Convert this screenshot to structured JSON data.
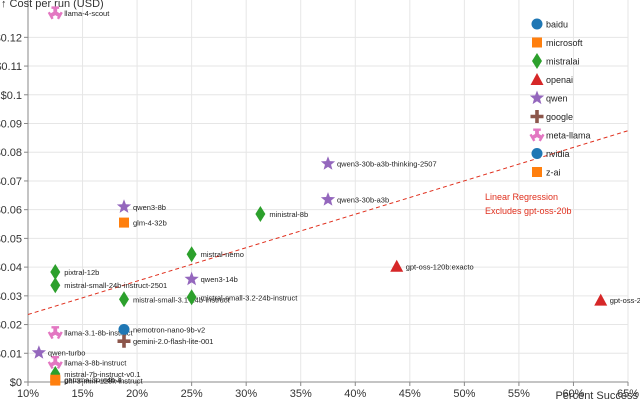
{
  "chart_data": {
    "type": "scatter",
    "title": "",
    "xlabel": "Percent Success",
    "ylabel": "↑ Cost per run (USD)",
    "xlim": [
      10,
      65
    ],
    "ylim": [
      0,
      0.133
    ],
    "x_ticks": [
      10,
      15,
      20,
      25,
      30,
      35,
      40,
      45,
      50,
      55,
      60,
      65
    ],
    "x_tick_labels": [
      "10%",
      "15%",
      "20%",
      "25%",
      "30%",
      "35%",
      "40%",
      "45%",
      "50%",
      "55%",
      "60%",
      "65%"
    ],
    "y_ticks": [
      0,
      0.01,
      0.02,
      0.03,
      0.04,
      0.05,
      0.06,
      0.07,
      0.08,
      0.09,
      0.1,
      0.11,
      0.12
    ],
    "y_tick_labels": [
      "$0",
      "$0.01",
      "$0.02",
      "$0.03",
      "$0.04",
      "$0.05",
      "$0.06",
      "$0.07",
      "$0.08",
      "$0.09",
      "$0.1",
      "$0.11",
      "$0.12"
    ],
    "series": [
      {
        "name": "baidu",
        "color": "#1f77b4",
        "shape": "circle"
      },
      {
        "name": "microsoft",
        "color": "#ff7f0e",
        "shape": "square"
      },
      {
        "name": "mistralai",
        "color": "#2ca02c",
        "shape": "diamond"
      },
      {
        "name": "openai",
        "color": "#d62728",
        "shape": "triangle"
      },
      {
        "name": "qwen",
        "color": "#9467bd",
        "shape": "star"
      },
      {
        "name": "google",
        "color": "#8c564b",
        "shape": "cross"
      },
      {
        "name": "meta-llama",
        "color": "#e377c2",
        "shape": "wye"
      },
      {
        "name": "nvidia",
        "color": "#1f77b4",
        "shape": "circle"
      },
      {
        "name": "z-ai",
        "color": "#ff7f0e",
        "shape": "square"
      }
    ],
    "points": [
      {
        "label": "llama-4-scout",
        "series": "meta-llama",
        "x": 12.5,
        "y": 0.1285
      },
      {
        "label": "qwen3-30b-a3b-thinking-2507",
        "series": "qwen",
        "x": 37.5,
        "y": 0.076
      },
      {
        "label": "qwen3-8b",
        "series": "qwen",
        "x": 18.8,
        "y": 0.061
      },
      {
        "label": "ministral-8b",
        "series": "mistralai",
        "x": 31.3,
        "y": 0.0585
      },
      {
        "label": "qwen3-30b-a3b",
        "series": "qwen",
        "x": 37.5,
        "y": 0.0635
      },
      {
        "label": "glm-4-32b",
        "series": "z-ai",
        "x": 18.8,
        "y": 0.0555
      },
      {
        "label": "mistral-nemo",
        "series": "mistralai",
        "x": 25.0,
        "y": 0.0445
      },
      {
        "label": "pixtral-12b",
        "series": "mistralai",
        "x": 12.5,
        "y": 0.0383
      },
      {
        "label": "gpt-oss-120b:exacto",
        "series": "openai",
        "x": 43.8,
        "y": 0.0403
      },
      {
        "label": "mistral-small-24b-instruct-2501",
        "series": "mistralai",
        "x": 12.5,
        "y": 0.0337
      },
      {
        "label": "qwen3-14b",
        "series": "qwen",
        "x": 25.0,
        "y": 0.0358
      },
      {
        "label": "mistral-small-3.1-24b-instruct",
        "series": "mistralai",
        "x": 18.8,
        "y": 0.0288
      },
      {
        "label": "mistral-small-3.2-24b-instruct",
        "series": "mistralai",
        "x": 25.0,
        "y": 0.0295
      },
      {
        "label": "gpt-oss-20b",
        "series": "openai",
        "x": 62.5,
        "y": 0.0285
      },
      {
        "label": "llama-3.1-8b-instruct",
        "series": "meta-llama",
        "x": 12.5,
        "y": 0.0172
      },
      {
        "label": "nemotron-nano-9b-v2",
        "series": "nvidia",
        "x": 18.8,
        "y": 0.0183
      },
      {
        "label": "gemini-2.0-flash-lite-001",
        "series": "google",
        "x": 18.8,
        "y": 0.0142
      },
      {
        "label": "qwen-turbo",
        "series": "qwen",
        "x": 11.0,
        "y": 0.0102
      },
      {
        "label": "llama-3-8b-instruct",
        "series": "meta-llama",
        "x": 12.5,
        "y": 0.0068
      },
      {
        "label": "mistral-7b-instruct-v0.1",
        "series": "mistralai",
        "x": 12.5,
        "y": 0.0028
      },
      {
        "label": "phi-3-mini-128k-instruct",
        "series": "microsoft",
        "x": 12.5,
        "y": 0.0005
      },
      {
        "label": "gemma-3n-e4b-it",
        "series": "microsoft",
        "x": 12.5,
        "y": 0.0008
      }
    ],
    "regression": {
      "x": [
        10,
        65
      ],
      "y": [
        0.0235,
        0.0875
      ],
      "label_lines": [
        "Linear Regression",
        "Excludes gpt-oss-20b"
      ],
      "color": "#e0301e"
    },
    "legend_position": "top-right"
  }
}
